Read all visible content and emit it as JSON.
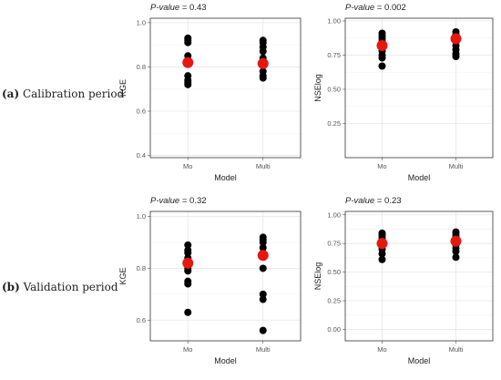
{
  "row_labels": [
    {
      "tag": "(a)",
      "text": "Calibration period"
    },
    {
      "tag": "(b)",
      "text": "Validation period"
    }
  ],
  "colors": {
    "points": "#000000",
    "mean": "#e8170d",
    "grid": "#e6e6e6",
    "frame": "#333333"
  },
  "chart_data": [
    {
      "type": "scatter",
      "pvalue_label": "P-value",
      "pvalue": "0.43",
      "xlabel": "Model",
      "ylabel": "KGE",
      "categories": [
        "Mo",
        "Multi"
      ],
      "ylim": [
        0.39,
        1.02
      ],
      "yticks": [
        "0.4",
        "0.6",
        "0.8",
        "1.0"
      ],
      "grid": true,
      "series": [
        {
          "values": [
            [
              0.93,
              0.92,
              0.91,
              0.85,
              0.83,
              0.76,
              0.74,
              0.73,
              0.72
            ],
            [
              0.92,
              0.91,
              0.89,
              0.87,
              0.84,
              0.81,
              0.78,
              0.76,
              0.75
            ]
          ]
        },
        {
          "values": [
            [
              0.82
            ],
            [
              0.815
            ]
          ]
        }
      ]
    },
    {
      "type": "scatter",
      "pvalue_label": "P-value",
      "pvalue": "0.002",
      "xlabel": "Model",
      "ylabel": "NSElog",
      "categories": [
        "Mo",
        "Multi"
      ],
      "ylim": [
        0.0,
        1.02
      ],
      "yticks": [
        "0.25",
        "0.50",
        "0.75",
        "1.00"
      ],
      "grid": true,
      "series": [
        {
          "values": [
            [
              0.91,
              0.89,
              0.87,
              0.85,
              0.82,
              0.78,
              0.75,
              0.73,
              0.67
            ],
            [
              0.92,
              0.9,
              0.89,
              0.87,
              0.85,
              0.82,
              0.79,
              0.76,
              0.74
            ]
          ]
        },
        {
          "values": [
            [
              0.82
            ],
            [
              0.87
            ]
          ]
        }
      ]
    },
    {
      "type": "scatter",
      "pvalue_label": "P-value",
      "pvalue": "0.32",
      "xlabel": "Model",
      "ylabel": "KGE",
      "categories": [
        "Mo",
        "Multi"
      ],
      "ylim": [
        0.52,
        1.02
      ],
      "yticks": [
        "0.6",
        "0.8",
        "1.0"
      ],
      "grid": true,
      "series": [
        {
          "values": [
            [
              0.89,
              0.87,
              0.86,
              0.84,
              0.8,
              0.79,
              0.75,
              0.74,
              0.63
            ],
            [
              0.92,
              0.91,
              0.9,
              0.88,
              0.86,
              0.8,
              0.7,
              0.68,
              0.56
            ]
          ]
        },
        {
          "values": [
            [
              0.82
            ],
            [
              0.85
            ]
          ]
        }
      ]
    },
    {
      "type": "scatter",
      "pvalue_label": "P-value",
      "pvalue": "0.23",
      "xlabel": "Model",
      "ylabel": "NSElog",
      "categories": [
        "Mo",
        "Multi"
      ],
      "ylim": [
        -0.1,
        1.03
      ],
      "yticks": [
        "0.00",
        "0.25",
        "0.50",
        "0.75",
        "1.00"
      ],
      "grid": true,
      "series": [
        {
          "values": [
            [
              0.84,
              0.82,
              0.8,
              0.78,
              0.76,
              0.73,
              0.7,
              0.66,
              0.61
            ],
            [
              0.85,
              0.83,
              0.81,
              0.79,
              0.77,
              0.74,
              0.71,
              0.68,
              0.63
            ]
          ]
        },
        {
          "values": [
            [
              0.75
            ],
            [
              0.77
            ]
          ]
        }
      ]
    }
  ]
}
